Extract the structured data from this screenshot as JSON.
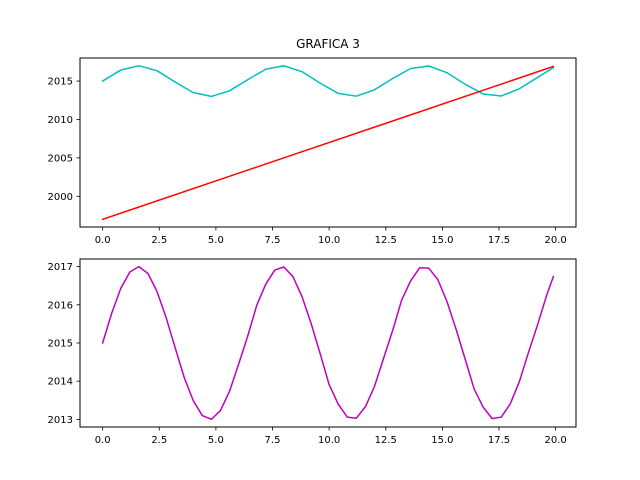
{
  "chart_data": [
    {
      "type": "line",
      "title": "GRAFICA 3",
      "xlabel": "",
      "ylabel": "",
      "xlim": [
        -1,
        20.9
      ],
      "ylim": [
        1996.0,
        2018.0
      ],
      "xticks": [
        0.0,
        2.5,
        5.0,
        7.5,
        10.0,
        12.5,
        15.0,
        17.5,
        20.0
      ],
      "xtick_labels": [
        "0.0",
        "2.5",
        "5.0",
        "7.5",
        "10.0",
        "12.5",
        "15.0",
        "17.5",
        "20.0"
      ],
      "yticks": [
        2000,
        2005,
        2010,
        2015
      ],
      "ytick_labels": [
        "2000",
        "2005",
        "2010",
        "2015"
      ],
      "grid": false,
      "series": [
        {
          "color": "#00bfbf",
          "x": [
            0.0,
            0.8,
            1.6,
            2.4,
            3.2,
            4.0,
            4.8,
            5.6,
            6.4,
            7.2,
            8.0,
            8.8,
            9.6,
            10.4,
            11.2,
            12.0,
            12.8,
            13.6,
            14.4,
            15.2,
            16.0,
            16.8,
            17.6,
            18.4,
            19.2,
            19.9
          ],
          "y": [
            2015.0,
            2016.43,
            2017.0,
            2016.35,
            2014.88,
            2013.49,
            2013.0,
            2013.73,
            2015.17,
            2016.54,
            2016.99,
            2016.22,
            2014.73,
            2013.4,
            2013.03,
            2013.86,
            2015.32,
            2016.63,
            2016.96,
            2016.09,
            2014.59,
            2013.32,
            2013.06,
            2013.99,
            2015.47,
            2016.74
          ]
        },
        {
          "color": "#ff0000",
          "x": [
            0.0,
            19.9
          ],
          "y": [
            1997.0,
            2016.9
          ]
        }
      ]
    },
    {
      "type": "line",
      "title": "",
      "xlabel": "",
      "ylabel": "",
      "xlim": [
        -1,
        20.9
      ],
      "ylim": [
        2012.8,
        2017.2
      ],
      "xticks": [
        0.0,
        2.5,
        5.0,
        7.5,
        10.0,
        12.5,
        15.0,
        17.5,
        20.0
      ],
      "xtick_labels": [
        "0.0",
        "2.5",
        "5.0",
        "7.5",
        "10.0",
        "12.5",
        "15.0",
        "17.5",
        "20.0"
      ],
      "yticks": [
        2013,
        2014,
        2015,
        2016,
        2017
      ],
      "ytick_labels": [
        "2013",
        "2014",
        "2015",
        "2016",
        "2017"
      ],
      "grid": false,
      "series": [
        {
          "color": "#bf00bf",
          "x": [
            0.0,
            0.4,
            0.8,
            1.2,
            1.6,
            2.0,
            2.4,
            2.8,
            3.2,
            3.6,
            4.0,
            4.4,
            4.8,
            5.2,
            5.6,
            6.0,
            6.4,
            6.8,
            7.2,
            7.6,
            8.0,
            8.4,
            8.8,
            9.2,
            9.6,
            10.0,
            10.4,
            10.8,
            11.2,
            11.6,
            12.0,
            12.4,
            12.8,
            13.2,
            13.6,
            14.0,
            14.4,
            14.8,
            15.2,
            15.6,
            16.0,
            16.4,
            16.8,
            17.2,
            17.6,
            18.0,
            18.4,
            18.8,
            19.2,
            19.6,
            19.9
          ],
          "y": [
            2015.0,
            2015.78,
            2016.43,
            2016.86,
            2017.0,
            2016.82,
            2016.35,
            2015.67,
            2014.88,
            2014.1,
            2013.49,
            2013.1,
            2013.0,
            2013.23,
            2013.73,
            2014.44,
            2015.17,
            2015.98,
            2016.54,
            2016.91,
            2016.99,
            2016.74,
            2016.22,
            2015.52,
            2014.73,
            2013.91,
            2013.4,
            2013.06,
            2013.03,
            2013.33,
            2013.86,
            2014.59,
            2015.32,
            2016.12,
            2016.63,
            2016.97,
            2016.96,
            2016.66,
            2016.09,
            2015.37,
            2014.59,
            2013.8,
            2013.32,
            2013.02,
            2013.06,
            2013.41,
            2013.99,
            2014.75,
            2015.47,
            2016.24,
            2016.74
          ]
        }
      ]
    }
  ]
}
